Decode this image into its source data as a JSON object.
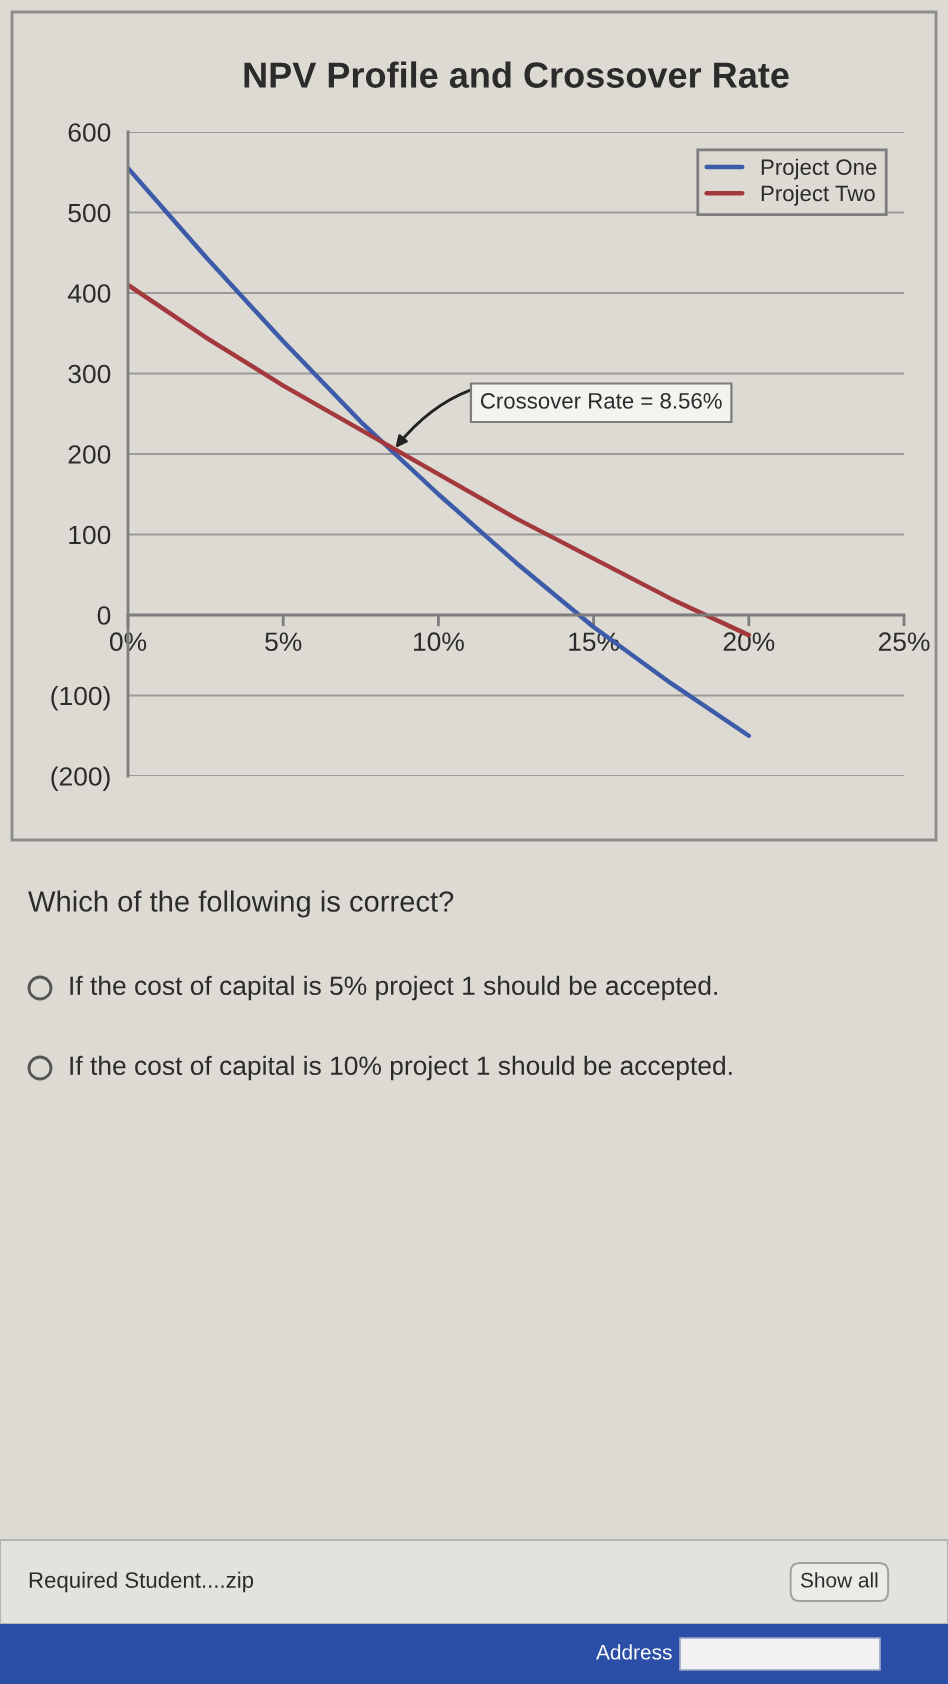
{
  "chart_data": {
    "type": "line",
    "title": "NPV Profile and Crossover Rate",
    "x": [
      0,
      2.5,
      5,
      7.5,
      10,
      12.5,
      15,
      17.5,
      20
    ],
    "xlim": [
      0,
      25
    ],
    "xticks": [
      {
        "value": 0,
        "label": "0%"
      },
      {
        "value": 5,
        "label": "5%"
      },
      {
        "value": 10,
        "label": "10%"
      },
      {
        "value": 15,
        "label": "15%"
      },
      {
        "value": 20,
        "label": "20%"
      },
      {
        "value": 25,
        "label": "25%"
      }
    ],
    "ylim": [
      -200,
      600
    ],
    "yticks": [
      {
        "value": -200,
        "label": "(200)"
      },
      {
        "value": -100,
        "label": "(100)"
      },
      0,
      100,
      200,
      300,
      400,
      500,
      600
    ],
    "grid": "y",
    "legend": "top right",
    "series": [
      {
        "name": "Project One",
        "color": "#3c5ba9",
        "values": [
          555,
          445,
          340,
          240,
          150,
          65,
          -15,
          -85,
          -150
        ]
      },
      {
        "name": "Project Two",
        "color": "#a3383d",
        "values": [
          410,
          345,
          285,
          230,
          175,
          120,
          70,
          20,
          -25
        ]
      }
    ],
    "annotations": [
      {
        "text": "Crossover Rate = 8.56%",
        "x": 8.56,
        "y": 205
      },
      "Which of the following is correct?",
      "If the cost of capital is 5% project 1 should be accepted.",
      "If the cost of capital is 10% project 1 should be accepted.",
      "Required Student....zip",
      "Show all",
      "Address"
    ]
  }
}
